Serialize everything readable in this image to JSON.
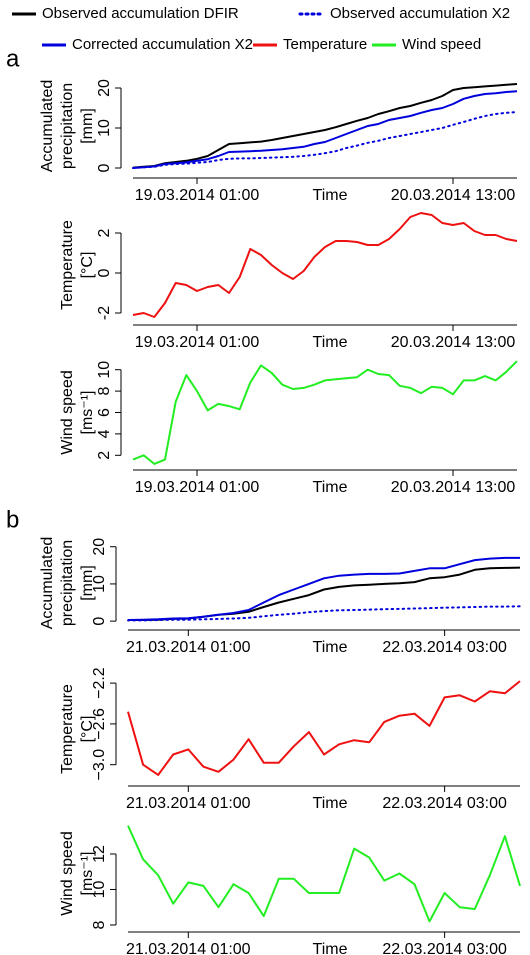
{
  "chart_data": [
    {
      "type": "line",
      "panel_label": "a",
      "categories": [
        null,
        null,
        null,
        null,
        null,
        null,
        "19.03.2014 01:00",
        null,
        null,
        null,
        null,
        null,
        null,
        null,
        null,
        null,
        null,
        null,
        null,
        null,
        null,
        null,
        null,
        null,
        null,
        null,
        null,
        null,
        null,
        null,
        "20.03.2014 13:00",
        null,
        null,
        null,
        null,
        null,
        null
      ],
      "xlabel": "Time",
      "ylabel": [
        "Accumulated",
        "precipitation",
        "[mm]"
      ],
      "ylim": [
        -0.5,
        21.5
      ],
      "yticks": [
        0,
        10,
        20
      ],
      "series": [
        {
          "name": "Observed accumulation DFIR",
          "color": "#000000",
          "line_style": "solid",
          "values": [
            0.1,
            0.3,
            0.5,
            1.2,
            1.5,
            1.8,
            2.3,
            3.0,
            4.5,
            6.0,
            6.2,
            6.4,
            6.6,
            7.0,
            7.5,
            8.0,
            8.5,
            9.0,
            9.5,
            10.2,
            11.0,
            11.8,
            12.5,
            13.5,
            14.2,
            15.0,
            15.5,
            16.3,
            17.0,
            18.0,
            19.5,
            20.0,
            20.2,
            20.4,
            20.6,
            20.8,
            21.0
          ]
        },
        {
          "name": "Observed accumulation X2",
          "color": "#0000dd",
          "line_style": "dotted",
          "values": [
            0,
            0.2,
            0.3,
            0.8,
            1.0,
            1.1,
            1.3,
            1.5,
            2.0,
            2.3,
            2.4,
            2.4,
            2.5,
            2.6,
            2.7,
            2.8,
            3.0,
            3.3,
            3.7,
            4.2,
            5.0,
            5.6,
            6.3,
            6.8,
            7.5,
            8.0,
            8.5,
            9.0,
            9.5,
            10.0,
            10.8,
            11.5,
            12.3,
            13.0,
            13.5,
            13.8,
            14.0
          ]
        },
        {
          "name": "Corrected accumulation X2",
          "color": "#0000dd",
          "line_style": "solid",
          "values": [
            0,
            0.2,
            0.4,
            1.0,
            1.2,
            1.4,
            1.8,
            2.2,
            3.0,
            4.0,
            4.1,
            4.2,
            4.3,
            4.5,
            4.7,
            5.0,
            5.3,
            6.0,
            6.5,
            7.5,
            8.5,
            9.5,
            10.5,
            11.0,
            12.0,
            12.5,
            13.0,
            13.8,
            14.5,
            15.0,
            16.0,
            17.3,
            18.0,
            18.5,
            18.7,
            19.0,
            19.2
          ]
        }
      ]
    },
    {
      "type": "line",
      "categories": [
        null,
        null,
        null,
        null,
        null,
        null,
        "19.03.2014 01:00",
        null,
        null,
        null,
        null,
        null,
        null,
        null,
        null,
        null,
        null,
        null,
        null,
        null,
        null,
        null,
        null,
        null,
        null,
        null,
        null,
        null,
        null,
        null,
        "20.03.2014 13:00",
        null,
        null,
        null,
        null,
        null,
        null
      ],
      "xlabel": "Time",
      "ylabel": [
        "Temperature",
        "[°C]"
      ],
      "ylim": [
        -2.3,
        3.1
      ],
      "yticks": [
        -2,
        0,
        2
      ],
      "series": [
        {
          "name": "Temperature",
          "color": "#ee1111",
          "line_style": "solid",
          "values": [
            -2.1,
            -2.0,
            -2.2,
            -1.5,
            -0.5,
            -0.6,
            -0.9,
            -0.7,
            -0.6,
            -1.0,
            -0.2,
            1.2,
            0.9,
            0.4,
            0.0,
            -0.3,
            0.1,
            0.8,
            1.3,
            1.6,
            1.6,
            1.55,
            1.4,
            1.4,
            1.7,
            2.2,
            2.8,
            3.0,
            2.9,
            2.5,
            2.4,
            2.5,
            2.1,
            1.9,
            1.9,
            1.7,
            1.6
          ]
        }
      ]
    },
    {
      "type": "line",
      "categories": [
        null,
        null,
        null,
        null,
        null,
        null,
        "19.03.2014 01:00",
        null,
        null,
        null,
        null,
        null,
        null,
        null,
        null,
        null,
        null,
        null,
        null,
        null,
        null,
        null,
        null,
        null,
        null,
        null,
        null,
        null,
        null,
        null,
        "20.03.2014 13:00",
        null,
        null,
        null,
        null,
        null,
        null
      ],
      "xlabel": "Time",
      "ylabel": [
        "Wind speed",
        "[ms⁻¹]"
      ],
      "ylim": [
        1,
        11
      ],
      "yticks": [
        2,
        4,
        6,
        8,
        10
      ],
      "series": [
        {
          "name": "Wind speed",
          "color": "#22ee22",
          "line_style": "solid",
          "values": [
            1.6,
            2.0,
            1.2,
            1.6,
            7.0,
            9.5,
            8.0,
            6.2,
            6.8,
            6.6,
            6.3,
            8.8,
            10.4,
            9.7,
            8.6,
            8.2,
            8.3,
            8.6,
            9.0,
            9.1,
            9.2,
            9.3,
            10.0,
            9.6,
            9.5,
            8.5,
            8.3,
            7.8,
            8.4,
            8.3,
            7.7,
            9.0,
            9.0,
            9.4,
            9.0,
            9.8,
            10.8
          ]
        }
      ]
    },
    {
      "type": "line",
      "panel_label": "b",
      "categories": [
        null,
        null,
        null,
        null,
        "21.03.2014 01:00",
        null,
        null,
        null,
        null,
        null,
        null,
        null,
        null,
        null,
        null,
        null,
        null,
        null,
        null,
        null,
        null,
        "22.03.2014 03:00",
        null,
        null,
        null,
        null,
        null
      ],
      "xlabel": "Time",
      "ylabel": [
        "Accumulated",
        "precipitation",
        "[mm]"
      ],
      "ylim": [
        -0.5,
        21
      ],
      "yticks": [
        0,
        10,
        20
      ],
      "series": [
        {
          "color": "#000000",
          "line_style": "solid",
          "values": [
            0.3,
            0.3,
            0.4,
            0.6,
            0.7,
            1.2,
            1.7,
            2.0,
            2.5,
            3.8,
            5.0,
            6.0,
            7.0,
            8.5,
            9.2,
            9.6,
            9.8,
            10.0,
            10.2,
            10.5,
            11.5,
            11.8,
            12.5,
            13.8,
            14.2,
            14.3,
            14.4
          ]
        },
        {
          "color": "#0000dd",
          "line_style": "dotted",
          "values": [
            0.2,
            0.2,
            0.3,
            0.4,
            0.4,
            0.5,
            0.6,
            0.7,
            0.9,
            1.3,
            1.7,
            2.0,
            2.4,
            2.7,
            2.9,
            3.0,
            3.1,
            3.2,
            3.3,
            3.4,
            3.5,
            3.6,
            3.7,
            3.8,
            3.9,
            3.9,
            4.0
          ]
        },
        {
          "color": "#0000dd",
          "line_style": "solid",
          "values": [
            0.3,
            0.4,
            0.5,
            0.7,
            0.8,
            1.2,
            1.7,
            2.2,
            3.0,
            5.0,
            7.0,
            8.5,
            10.0,
            11.5,
            12.2,
            12.5,
            12.7,
            12.7,
            12.8,
            13.5,
            14.2,
            14.2,
            15.3,
            16.4,
            16.8,
            17.0,
            17.0
          ]
        }
      ]
    },
    {
      "type": "line",
      "categories": [
        null,
        null,
        null,
        null,
        "21.03.2014 01:00",
        null,
        null,
        null,
        null,
        null,
        null,
        null,
        null,
        null,
        null,
        null,
        null,
        null,
        null,
        null,
        null,
        "22.03.2014 03:00",
        null,
        null,
        null,
        null,
        null
      ],
      "xlabel": "Time",
      "ylabel": [
        "Temperature",
        "[°C]"
      ],
      "ylim": [
        -3.15,
        -2.15
      ],
      "yticks": [
        {
          "value": -3.0,
          "label": "−3.0"
        },
        {
          "value": -2.6,
          "label": "−2.6"
        },
        {
          "value": -2.2,
          "label": "−2.2"
        }
      ],
      "series": [
        {
          "color": "#ee1111",
          "line_style": "solid",
          "values": [
            -2.48,
            -3.0,
            -3.1,
            -2.9,
            -2.85,
            -3.02,
            -3.07,
            -2.95,
            -2.75,
            -2.98,
            -2.98,
            -2.82,
            -2.68,
            -2.9,
            -2.8,
            -2.76,
            -2.78,
            -2.58,
            -2.52,
            -2.5,
            -2.62,
            -2.34,
            -2.32,
            -2.38,
            -2.28,
            -2.3,
            -2.18
          ]
        }
      ]
    },
    {
      "type": "line",
      "categories": [
        null,
        null,
        null,
        null,
        "21.03.2014 01:00",
        null,
        null,
        null,
        null,
        null,
        null,
        null,
        null,
        null,
        null,
        null,
        null,
        null,
        null,
        null,
        null,
        "22.03.2014 03:00",
        null,
        null,
        null,
        null,
        null
      ],
      "xlabel": "Time",
      "ylabel": [
        "Wind speed",
        "[ms⁻¹]"
      ],
      "ylim": [
        8,
        13.8
      ],
      "yticks": [
        8,
        10,
        12
      ],
      "series": [
        {
          "color": "#22ee22",
          "line_style": "solid",
          "values": [
            13.6,
            11.7,
            10.8,
            9.2,
            10.4,
            10.2,
            9.0,
            10.3,
            9.8,
            8.5,
            10.6,
            10.6,
            9.8,
            9.8,
            9.8,
            12.3,
            11.8,
            10.5,
            10.9,
            10.3,
            8.2,
            9.8,
            9.0,
            8.9,
            10.8,
            13.0,
            10.2
          ]
        }
      ]
    }
  ]
}
